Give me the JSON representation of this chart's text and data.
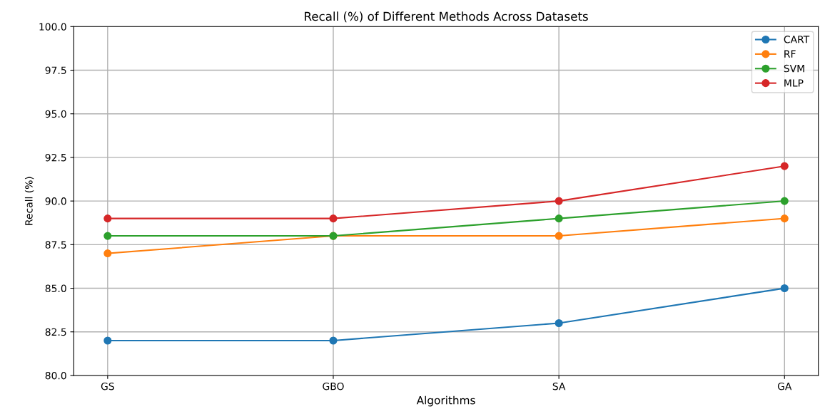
{
  "chart_data": {
    "type": "line",
    "title": "Recall (%) of Different Methods Across Datasets",
    "xlabel": "Algorithms",
    "ylabel": "Recall (%)",
    "categories": [
      "GS",
      "GBO",
      "SA",
      "GA"
    ],
    "series": [
      {
        "name": "CART",
        "color": "#1f77b4",
        "values": [
          82,
          82,
          83,
          85
        ]
      },
      {
        "name": "RF",
        "color": "#ff7f0e",
        "values": [
          87,
          88,
          88,
          89
        ]
      },
      {
        "name": "SVM",
        "color": "#2ca02c",
        "values": [
          88,
          88,
          89,
          90
        ]
      },
      {
        "name": "MLP",
        "color": "#d62728",
        "values": [
          89,
          89,
          90,
          92
        ]
      }
    ],
    "ylim": [
      80,
      100
    ],
    "yticks": [
      {
        "value": 80,
        "label": "80.0"
      },
      {
        "value": 82.5,
        "label": "82.5"
      },
      {
        "value": 85,
        "label": "85.0"
      },
      {
        "value": 87.5,
        "label": "87.5"
      },
      {
        "value": 90,
        "label": "90.0"
      },
      {
        "value": 92.5,
        "label": "92.5"
      },
      {
        "value": 95,
        "label": "95.0"
      },
      {
        "value": 97.5,
        "label": "97.5"
      },
      {
        "value": 100,
        "label": "100.0"
      }
    ],
    "grid": true,
    "legend": "top right",
    "marker": "circle",
    "line_style": "solid"
  }
}
